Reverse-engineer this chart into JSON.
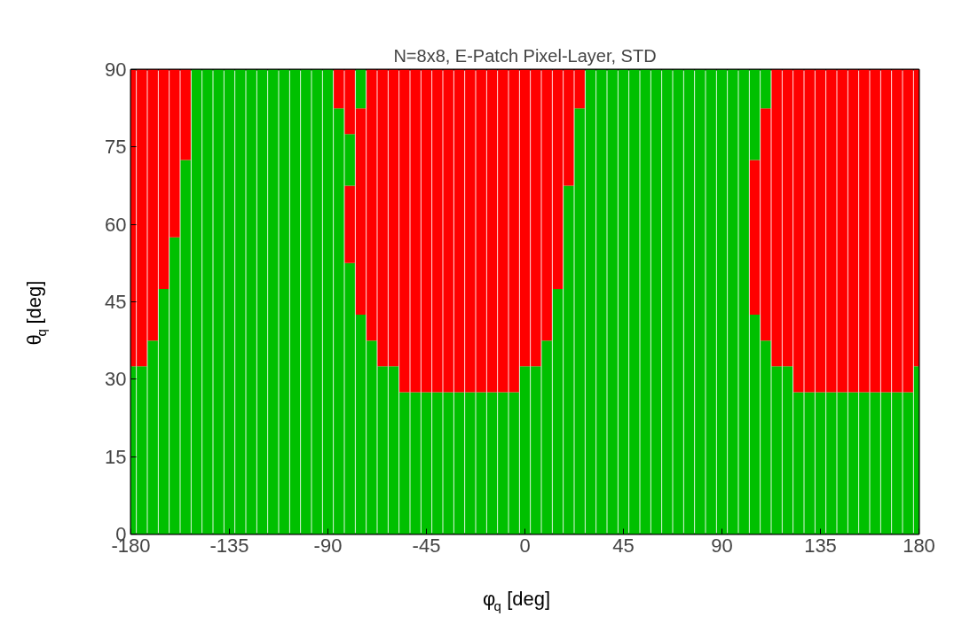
{
  "chart_data": {
    "type": "bar",
    "stacked": true,
    "title": "N=8x8, E-Patch Pixel-Layer, STD",
    "xlabel": "φ$_{q}$ [deg]",
    "ylabel": "θ$_{q}$ [deg]",
    "x": [
      -180,
      -175,
      -170,
      -165,
      -160,
      -155,
      -150,
      -145,
      -140,
      -135,
      -130,
      -125,
      -120,
      -115,
      -110,
      -105,
      -100,
      -95,
      -90,
      -85,
      -80,
      -75,
      -70,
      -65,
      -60,
      -55,
      -50,
      -45,
      -40,
      -35,
      -30,
      -25,
      -20,
      -15,
      -10,
      -5,
      0,
      5,
      10,
      15,
      20,
      25,
      30,
      35,
      40,
      45,
      50,
      55,
      60,
      65,
      70,
      75,
      80,
      85,
      90,
      95,
      100,
      105,
      110,
      115,
      120,
      125,
      130,
      135,
      140,
      145,
      150,
      155,
      160,
      165,
      170,
      175,
      180
    ],
    "series": [
      {
        "color": "#00c000",
        "values": [
          32.5,
          32.5,
          37.5,
          47.5,
          57.5,
          72.5,
          90,
          90,
          90,
          90,
          90,
          90,
          90,
          90,
          90,
          90,
          90,
          90,
          90,
          82.5,
          52.5,
          42.5,
          37.5,
          32.5,
          32.5,
          27.5,
          27.5,
          27.5,
          27.5,
          27.5,
          27.5,
          27.5,
          27.5,
          27.5,
          27.5,
          27.5,
          32.5,
          32.5,
          37.5,
          47.5,
          67.5,
          82.5,
          90,
          90,
          90,
          90,
          90,
          90,
          90,
          90,
          90,
          90,
          90,
          90,
          90,
          90,
          90,
          42.5,
          37.5,
          32.5,
          32.5,
          27.5,
          27.5,
          27.5,
          27.5,
          27.5,
          27.5,
          27.5,
          27.5,
          27.5,
          27.5,
          27.5,
          32.5
        ]
      },
      {
        "color": "#ff0000",
        "values": [
          57.5,
          57.5,
          52.5,
          42.5,
          32.5,
          17.5,
          null,
          null,
          null,
          null,
          null,
          null,
          null,
          null,
          null,
          null,
          null,
          null,
          null,
          7.5,
          15,
          40,
          52.5,
          57.5,
          57.5,
          62.5,
          62.5,
          62.5,
          62.5,
          62.5,
          62.5,
          62.5,
          62.5,
          62.5,
          62.5,
          62.5,
          57.5,
          57.5,
          52.5,
          42.5,
          22.5,
          7.5,
          null,
          null,
          null,
          null,
          null,
          null,
          null,
          null,
          null,
          null,
          null,
          null,
          null,
          null,
          null,
          30,
          45,
          57.5,
          57.5,
          62.5,
          62.5,
          62.5,
          62.5,
          62.5,
          62.5,
          62.5,
          62.5,
          62.5,
          62.5,
          62.5,
          57.5
        ]
      },
      {
        "color": "#00c000",
        "values": [
          null,
          null,
          null,
          null,
          null,
          null,
          null,
          null,
          null,
          null,
          null,
          null,
          null,
          null,
          null,
          null,
          null,
          null,
          null,
          null,
          10,
          7.5,
          null,
          null,
          null,
          null,
          null,
          null,
          null,
          null,
          null,
          null,
          null,
          null,
          null,
          null,
          null,
          null,
          null,
          null,
          null,
          null,
          null,
          null,
          null,
          null,
          null,
          null,
          null,
          null,
          null,
          null,
          null,
          null,
          null,
          null,
          null,
          17.5,
          7.5,
          null,
          null,
          null,
          null,
          null,
          null,
          null,
          null,
          null,
          null,
          null,
          null,
          null,
          null
        ]
      },
      {
        "color": "#ff0000",
        "values": [
          null,
          null,
          null,
          null,
          null,
          null,
          null,
          null,
          null,
          null,
          null,
          null,
          null,
          null,
          null,
          null,
          null,
          null,
          null,
          null,
          12.5,
          null,
          null,
          null,
          null,
          null,
          null,
          null,
          null,
          null,
          null,
          null,
          null,
          null,
          null,
          null,
          null,
          null,
          null,
          null,
          null,
          null,
          null,
          null,
          null,
          null,
          null,
          null,
          null,
          null,
          null,
          null,
          null,
          null,
          null,
          null,
          null,
          null,
          null,
          null,
          null,
          null,
          null,
          null,
          null,
          null,
          null,
          null,
          null,
          null,
          null,
          null,
          null
        ]
      }
    ],
    "xlim": [
      -180,
      180
    ],
    "xticks": [
      -180,
      -135,
      -90,
      -45,
      0,
      45,
      90,
      135,
      180
    ],
    "ylim": [
      0,
      90
    ],
    "yticks": [
      0,
      15,
      30,
      45,
      60,
      75,
      90
    ]
  }
}
